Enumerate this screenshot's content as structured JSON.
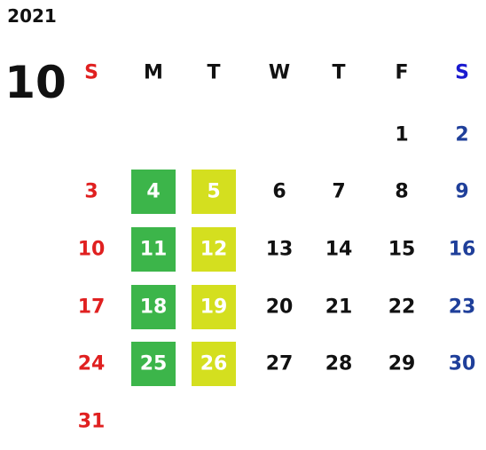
{
  "year": "2021",
  "month": "10",
  "weekdays": [
    "S",
    "M",
    "T",
    "W",
    "T",
    "F",
    "S"
  ],
  "weeks": [
    [
      null,
      null,
      null,
      null,
      null,
      "1",
      "2"
    ],
    [
      "3",
      "4",
      "5",
      "6",
      "7",
      "8",
      "9"
    ],
    [
      "10",
      "11",
      "12",
      "13",
      "14",
      "15",
      "16"
    ],
    [
      "17",
      "18",
      "19",
      "20",
      "21",
      "22",
      "23"
    ],
    [
      "24",
      "25",
      "26",
      "27",
      "28",
      "29",
      "30"
    ],
    [
      "31",
      null,
      null,
      null,
      null,
      null,
      null
    ]
  ]
}
